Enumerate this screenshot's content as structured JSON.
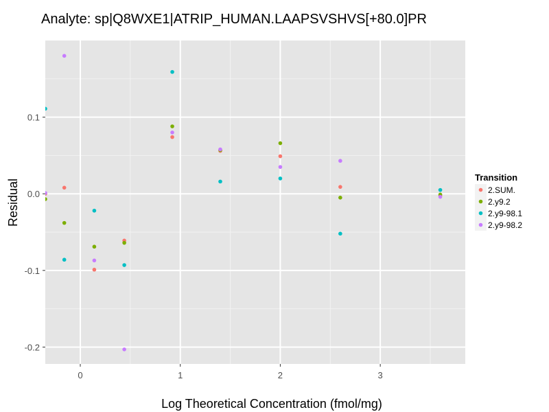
{
  "chart_data": {
    "type": "scatter",
    "title": "Analyte: sp|Q8WXE1|ATRIP_HUMAN.LAAPSVSHVS[+80.0]PR",
    "xlabel": "Log Theoretical Concentration (fmol/mg)",
    "ylabel": "Residual",
    "xlim": [
      -0.35,
      3.85
    ],
    "ylim": [
      -0.222,
      0.2
    ],
    "x_ticks": [
      0,
      1,
      2,
      3
    ],
    "x_tick_labels": [
      "0",
      "1",
      "2",
      "3"
    ],
    "y_ticks": [
      -0.2,
      -0.1,
      0.0,
      0.1
    ],
    "y_tick_labels": [
      "-0.2",
      "-0.1",
      "0.0",
      "0.1"
    ],
    "grid": true,
    "legend": {
      "title": "Transition",
      "position": "right"
    },
    "series": [
      {
        "name": "2.SUM.",
        "color": "#F8766D",
        "points": [
          {
            "x": -0.35,
            "y": 0.0
          },
          {
            "x": -0.16,
            "y": 0.008
          },
          {
            "x": 0.14,
            "y": -0.099
          },
          {
            "x": 0.44,
            "y": -0.061
          },
          {
            "x": 0.92,
            "y": 0.074
          },
          {
            "x": 1.4,
            "y": 0.056
          },
          {
            "x": 2.0,
            "y": 0.049
          },
          {
            "x": 2.6,
            "y": 0.009
          },
          {
            "x": 3.6,
            "y": -0.002
          }
        ]
      },
      {
        "name": "2.y9.2",
        "color": "#7CAE00",
        "points": [
          {
            "x": -0.35,
            "y": -0.007
          },
          {
            "x": -0.16,
            "y": -0.038
          },
          {
            "x": 0.14,
            "y": -0.069
          },
          {
            "x": 0.44,
            "y": -0.064
          },
          {
            "x": 0.92,
            "y": 0.088
          },
          {
            "x": 1.4,
            "y": 0.057
          },
          {
            "x": 2.0,
            "y": 0.066
          },
          {
            "x": 2.6,
            "y": -0.005
          },
          {
            "x": 3.6,
            "y": -0.001
          }
        ]
      },
      {
        "name": "2.y9-98.1",
        "color": "#00BFC4",
        "points": [
          {
            "x": -0.35,
            "y": 0.111
          },
          {
            "x": -0.16,
            "y": -0.086
          },
          {
            "x": 0.14,
            "y": -0.022
          },
          {
            "x": 0.44,
            "y": -0.093
          },
          {
            "x": 0.92,
            "y": 0.159
          },
          {
            "x": 1.4,
            "y": 0.016
          },
          {
            "x": 2.0,
            "y": 0.02
          },
          {
            "x": 2.6,
            "y": -0.052
          },
          {
            "x": 3.6,
            "y": 0.005
          }
        ]
      },
      {
        "name": "2.y9-98.2",
        "color": "#C77CFF",
        "points": [
          {
            "x": -0.35,
            "y": 0.001
          },
          {
            "x": -0.16,
            "y": 0.18
          },
          {
            "x": 0.14,
            "y": -0.087
          },
          {
            "x": 0.44,
            "y": -0.203
          },
          {
            "x": 0.92,
            "y": 0.08
          },
          {
            "x": 1.4,
            "y": 0.058
          },
          {
            "x": 2.0,
            "y": 0.035
          },
          {
            "x": 2.6,
            "y": 0.043
          },
          {
            "x": 3.6,
            "y": -0.004
          }
        ]
      }
    ]
  },
  "colors": {
    "panel_background": "#E5E5E5",
    "grid_major": "#FFFFFF",
    "grid_minor": "#F2F2F2"
  }
}
